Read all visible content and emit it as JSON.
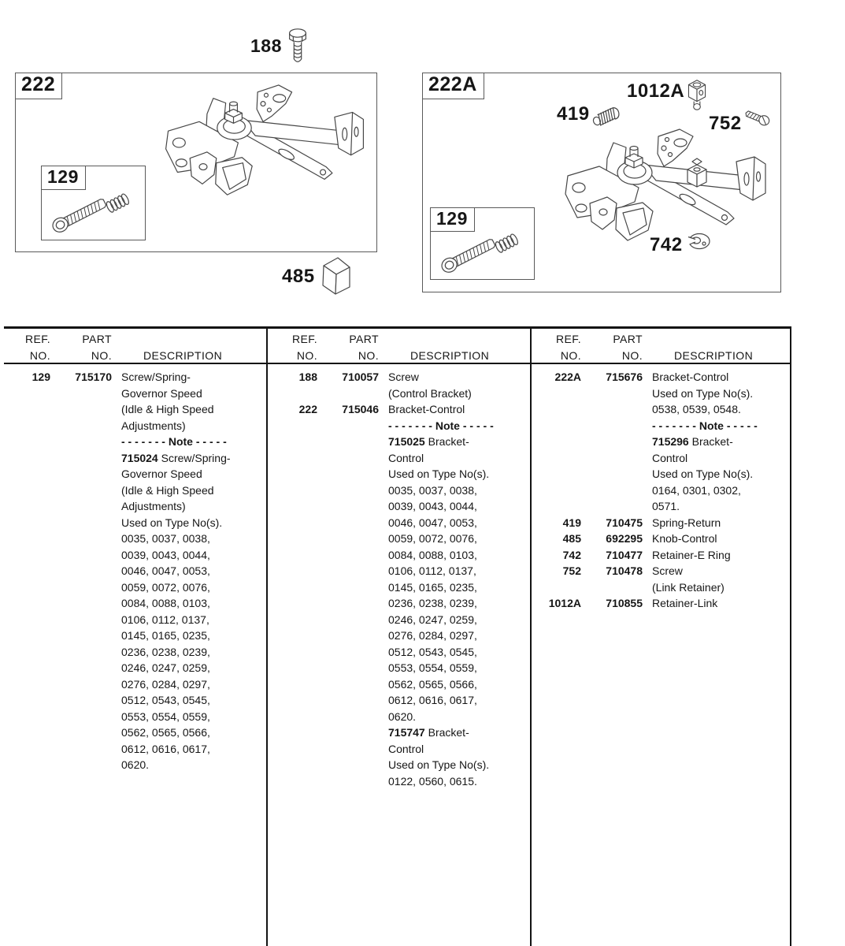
{
  "colors": {
    "paper": "#ffffff",
    "ink": "#161616",
    "box_line": "#5a5a5a"
  },
  "figure": {
    "screw_188_label": "188",
    "box_222": {
      "title": "222",
      "inset_title": "129"
    },
    "knob_485_label": "485",
    "box_222a": {
      "title": "222A",
      "knob_1012a_label": "1012A",
      "spring_419_label": "419",
      "screw_752_label": "752",
      "ering_742_label": "742",
      "inset_title": "129"
    }
  },
  "table": {
    "header": {
      "ref_l1": "REF.",
      "ref_l2": "NO.",
      "part_l1": "PART",
      "part_l2": "NO.",
      "desc": "DESCRIPTION"
    },
    "columns": [
      {
        "rows": [
          {
            "ref": "129",
            "part": "715170",
            "desc": [
              "Screw/Spring-",
              "Governor Speed",
              "(Idle & High Speed",
              "Adjustments)",
              "**- - - - - - -  Note  - - - - -**",
              "**715024** Screw/Spring-",
              "Governor Speed",
              "(Idle & High Speed",
              "Adjustments)",
              "Used on Type No(s).",
              "0035, 0037, 0038,",
              "0039, 0043, 0044,",
              "0046, 0047, 0053,",
              "0059, 0072, 0076,",
              "0084, 0088, 0103,",
              "0106, 0112, 0137,",
              "0145, 0165, 0235,",
              "0236, 0238, 0239,",
              "0246, 0247, 0259,",
              "0276, 0284, 0297,",
              "0512, 0543, 0545,",
              "0553, 0554, 0559,",
              "0562, 0565, 0566,",
              "0612, 0616, 0617,",
              "0620."
            ]
          }
        ]
      },
      {
        "rows": [
          {
            "ref": "188",
            "part": "710057",
            "desc": [
              "Screw",
              "(Control Bracket)"
            ]
          },
          {
            "ref": "222",
            "part": "715046",
            "desc": [
              "Bracket-Control",
              "**- - - - - - -  Note  - - - - -**",
              "**715025** Bracket-",
              "Control",
              "Used on Type No(s).",
              "0035, 0037, 0038,",
              "0039, 0043, 0044,",
              "0046, 0047, 0053,",
              "0059, 0072, 0076,",
              "0084, 0088, 0103,",
              "0106, 0112, 0137,",
              "0145, 0165, 0235,",
              "0236, 0238, 0239,",
              "0246, 0247, 0259,",
              "0276, 0284, 0297,",
              "0512, 0543, 0545,",
              "0553, 0554, 0559,",
              "0562, 0565, 0566,",
              "0612, 0616, 0617,",
              "0620.",
              "**715747** Bracket-",
              "Control",
              "Used on Type No(s).",
              "0122, 0560, 0615."
            ]
          }
        ]
      },
      {
        "rows": [
          {
            "ref": "222A",
            "part": "715676",
            "desc": [
              "Bracket-Control",
              "Used on Type No(s).",
              "0538, 0539, 0548.",
              "**- - - - - - -  Note  - - - - -**",
              "**715296** Bracket-",
              "Control",
              "Used on Type No(s).",
              "0164, 0301, 0302,",
              "0571."
            ]
          },
          {
            "ref": "419",
            "part": "710475",
            "desc": [
              "Spring-Return"
            ]
          },
          {
            "ref": "485",
            "part": "692295",
            "desc": [
              "Knob-Control"
            ]
          },
          {
            "ref": "742",
            "part": "710477",
            "desc": [
              "Retainer-E Ring"
            ]
          },
          {
            "ref": "752",
            "part": "710478",
            "desc": [
              "Screw",
              "(Link Retainer)"
            ]
          },
          {
            "ref": "1012A",
            "part": "710855",
            "desc": [
              "Retainer-Link"
            ]
          }
        ]
      }
    ]
  }
}
